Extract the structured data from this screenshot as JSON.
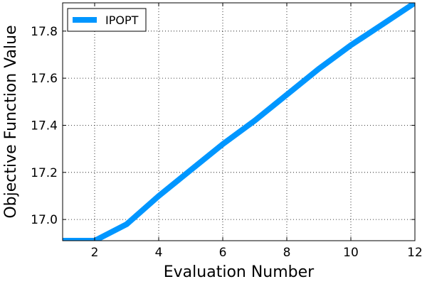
{
  "chart_data": {
    "type": "line",
    "title": "",
    "xlabel": "Evaluation Number",
    "ylabel": "Objective Function Value",
    "xlim": [
      1,
      12
    ],
    "ylim": [
      16.91,
      17.92
    ],
    "xticks": [
      2,
      4,
      6,
      8,
      10,
      12
    ],
    "xtick_labels": [
      "2",
      "4",
      "6",
      "8",
      "10",
      "12"
    ],
    "yticks": [
      17.0,
      17.2,
      17.4,
      17.6,
      17.8
    ],
    "ytick_labels": [
      "17.0",
      "17.2",
      "17.4",
      "17.6",
      "17.8"
    ],
    "grid": true,
    "legend_position": "top-left",
    "series": [
      {
        "name": "IPOPT",
        "color": "#0096ff",
        "x": [
          1,
          2,
          3,
          4,
          5,
          6,
          7,
          8,
          9,
          10,
          11,
          12
        ],
        "y": [
          16.91,
          16.91,
          16.98,
          17.1,
          17.21,
          17.32,
          17.42,
          17.53,
          17.64,
          17.74,
          17.83,
          17.92
        ]
      }
    ]
  }
}
